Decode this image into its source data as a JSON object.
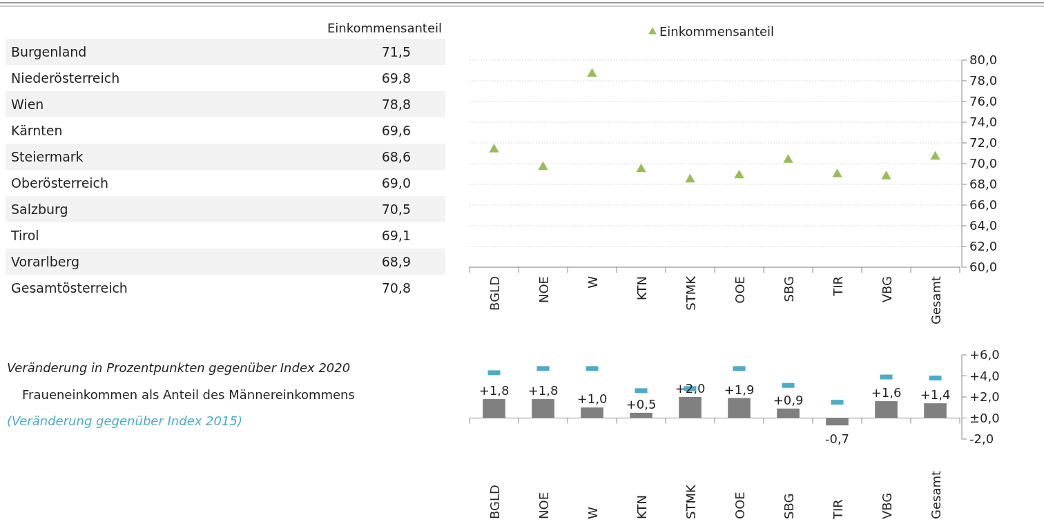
{
  "chart_data": [
    {
      "type": "other",
      "title": "Einkommensanteil",
      "categories": [
        "Burgenland",
        "Niederösterreich",
        "Wien",
        "Kärnten",
        "Steiermark",
        "Oberösterreich",
        "Salzburg",
        "Tirol",
        "Vorarlberg",
        "Gesamtösterreich"
      ],
      "value_labels": [
        "71,5",
        "69,8",
        "78,8",
        "69,6",
        "68,6",
        "69,0",
        "70,5",
        "69,1",
        "68,9",
        "70,8"
      ]
    },
    {
      "type": "scatter",
      "categories": [
        "BGLD",
        "NOE",
        "W",
        "KTN",
        "STMK",
        "OOE",
        "SBG",
        "TIR",
        "VBG",
        "Gesamt"
      ],
      "series": [
        {
          "name": "Einkommensanteil",
          "color": "#9bbb59",
          "values": [
            71.5,
            69.8,
            78.8,
            69.6,
            68.6,
            69.0,
            70.5,
            69.1,
            68.9,
            70.8
          ]
        }
      ],
      "ylim": [
        60,
        80
      ],
      "yticks": [
        {
          "value": 60,
          "label": "60,0"
        },
        {
          "value": 62,
          "label": "62,0"
        },
        {
          "value": 64,
          "label": "64,0"
        },
        {
          "value": 66,
          "label": "66,0"
        },
        {
          "value": 68,
          "label": "68,0"
        },
        {
          "value": 70,
          "label": "70,0"
        },
        {
          "value": 72,
          "label": "72,0"
        },
        {
          "value": 74,
          "label": "74,0"
        },
        {
          "value": 76,
          "label": "76,0"
        },
        {
          "value": 78,
          "label": "78,0"
        },
        {
          "value": 80,
          "label": "80,0"
        }
      ],
      "grid": "y",
      "legend": "top",
      "marker": "triangle"
    },
    {
      "type": "other",
      "title": "Veränderung in Prozentpunkten gegenüber Index 2020",
      "subtitle": "Fraueneinkommen als Anteil des Männereinkommens",
      "annotations": [
        "(Veränderung gegenüber Index 2015)"
      ]
    },
    {
      "type": "bar",
      "categories": [
        "BGLD",
        "NOE",
        "W",
        "KTN",
        "STMK",
        "OOE",
        "SBG",
        "TIR",
        "VBG",
        "Gesamt"
      ],
      "series": [
        {
          "color": "#808080",
          "values": [
            1.8,
            1.8,
            1.0,
            0.5,
            2.0,
            1.9,
            0.9,
            -0.7,
            1.6,
            1.4
          ],
          "value_labels": [
            "+1,8",
            "+1,8",
            "+1,0",
            "+0,5",
            "+2,0",
            "+1,9",
            "+0,9",
            "-0,7",
            "+1,6",
            "+1,4"
          ]
        },
        {
          "type": "scatter",
          "color": "#4bacc6",
          "values": [
            4.3,
            4.7,
            4.7,
            2.6,
            2.8,
            4.7,
            3.1,
            1.5,
            3.9,
            3.8
          ]
        }
      ],
      "ylim": [
        -2,
        6
      ],
      "yticks": [
        {
          "value": 6,
          "label": "+6,0"
        },
        {
          "value": 4,
          "label": "+4,0"
        },
        {
          "value": 2,
          "label": "+2,0"
        },
        {
          "value": 0,
          "label": "±0,0"
        },
        {
          "value": -2,
          "label": "-2,0"
        }
      ]
    }
  ]
}
